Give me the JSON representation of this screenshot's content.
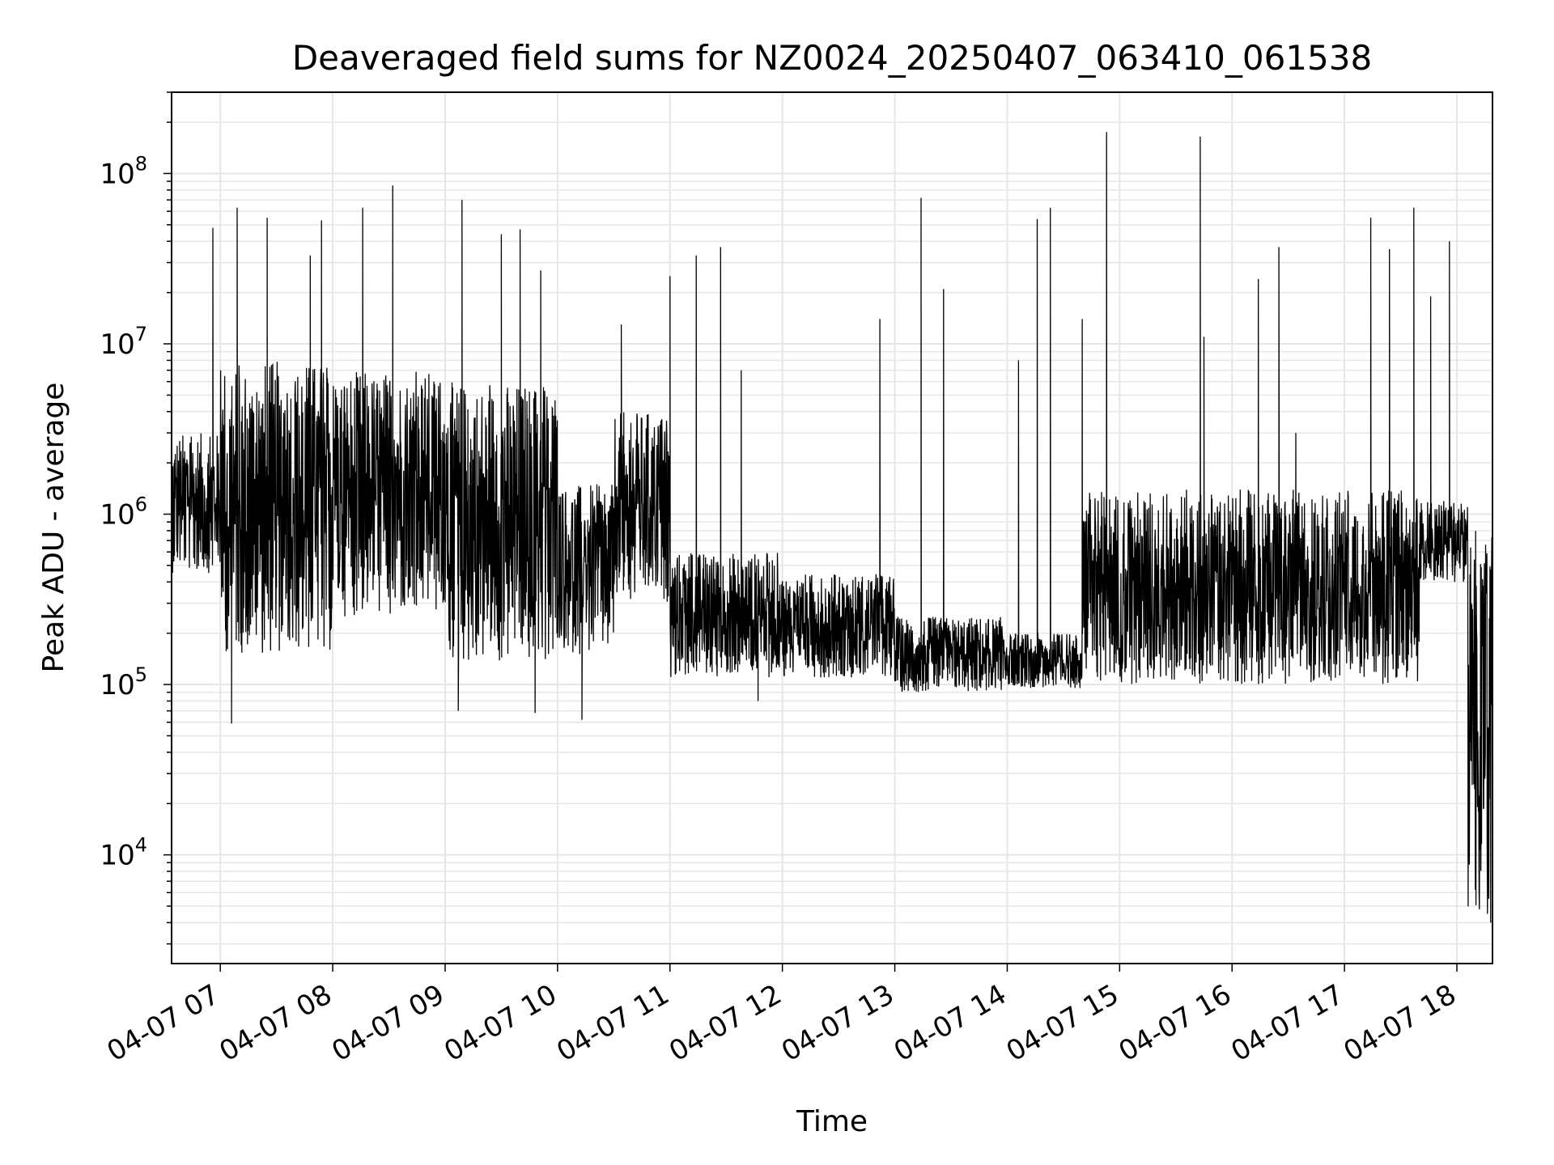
{
  "chart_data": {
    "type": "line",
    "title": "Deaveraged field sums for NZ0024_20250407_063410_061538",
    "xlabel": "Time",
    "ylabel": "Peak ADU - average",
    "yscale": "log",
    "ylim": [
      2300,
      300000000
    ],
    "xlim": [
      "2025-04-07 06:34",
      "2025-04-07 18:19"
    ],
    "grid": true,
    "line_color": "#000000",
    "grid_color": "#e6e6e6",
    "x_ticks": [
      {
        "value": "2025-04-07 07:00",
        "label": "04-07 07"
      },
      {
        "value": "2025-04-07 08:00",
        "label": "04-07 08"
      },
      {
        "value": "2025-04-07 09:00",
        "label": "04-07 09"
      },
      {
        "value": "2025-04-07 10:00",
        "label": "04-07 10"
      },
      {
        "value": "2025-04-07 11:00",
        "label": "04-07 11"
      },
      {
        "value": "2025-04-07 12:00",
        "label": "04-07 12"
      },
      {
        "value": "2025-04-07 13:00",
        "label": "04-07 13"
      },
      {
        "value": "2025-04-07 14:00",
        "label": "04-07 14"
      },
      {
        "value": "2025-04-07 15:00",
        "label": "04-07 15"
      },
      {
        "value": "2025-04-07 16:00",
        "label": "04-07 16"
      },
      {
        "value": "2025-04-07 17:00",
        "label": "04-07 17"
      },
      {
        "value": "2025-04-07 18:00",
        "label": "04-07 18"
      }
    ],
    "y_ticks": [
      {
        "value": 10000,
        "base": "10",
        "exp": "4"
      },
      {
        "value": 100000,
        "base": "10",
        "exp": "5"
      },
      {
        "value": 1000000,
        "base": "10",
        "exp": "6"
      },
      {
        "value": 10000000,
        "base": "10",
        "exp": "7"
      },
      {
        "value": 100000000,
        "base": "10",
        "exp": "8"
      }
    ],
    "series": [
      {
        "segments": [
          {
            "start": "2025-04-07 06:34",
            "end": "2025-04-07 07:00",
            "low": 450000,
            "high": 3000000
          },
          {
            "start": "2025-04-07 07:00",
            "end": "2025-04-07 08:00",
            "low": 150000,
            "high": 8000000
          },
          {
            "start": "2025-04-07 08:00",
            "end": "2025-04-07 09:00",
            "low": 250000,
            "high": 7000000
          },
          {
            "start": "2025-04-07 09:00",
            "end": "2025-04-07 10:00",
            "low": 130000,
            "high": 6000000
          },
          {
            "start": "2025-04-07 10:00",
            "end": "2025-04-07 10:30",
            "low": 150000,
            "high": 1500000
          },
          {
            "start": "2025-04-07 10:30",
            "end": "2025-04-07 11:00",
            "low": 300000,
            "high": 4000000
          },
          {
            "start": "2025-04-07 11:00",
            "end": "2025-04-07 12:00",
            "low": 110000,
            "high": 600000
          },
          {
            "start": "2025-04-07 12:00",
            "end": "2025-04-07 13:00",
            "low": 110000,
            "high": 450000
          },
          {
            "start": "2025-04-07 13:00",
            "end": "2025-04-07 14:00",
            "low": 90000,
            "high": 250000
          },
          {
            "start": "2025-04-07 14:00",
            "end": "2025-04-07 14:40",
            "low": 95000,
            "high": 200000
          },
          {
            "start": "2025-04-07 14:40",
            "end": "2025-04-07 17:40",
            "low": 100000,
            "high": 1400000
          },
          {
            "start": "2025-04-07 17:40",
            "end": "2025-04-07 18:06",
            "low": 400000,
            "high": 1200000
          },
          {
            "start": "2025-04-07 18:06",
            "end": "2025-04-07 18:19",
            "low": 4000,
            "high": 800000
          }
        ],
        "spikes": [
          {
            "time": "2025-04-07 06:56",
            "value": 48000000
          },
          {
            "time": "2025-04-07 07:09",
            "value": 63000000
          },
          {
            "time": "2025-04-07 07:25",
            "value": 55000000
          },
          {
            "time": "2025-04-07 07:48",
            "value": 33000000
          },
          {
            "time": "2025-04-07 07:54",
            "value": 53000000
          },
          {
            "time": "2025-04-07 08:16",
            "value": 63000000
          },
          {
            "time": "2025-04-07 08:32",
            "value": 85000000
          },
          {
            "time": "2025-04-07 09:09",
            "value": 70000000
          },
          {
            "time": "2025-04-07 09:30",
            "value": 44000000
          },
          {
            "time": "2025-04-07 09:40",
            "value": 47000000
          },
          {
            "time": "2025-04-07 09:51",
            "value": 27000000
          },
          {
            "time": "2025-04-07 10:34",
            "value": 13000000
          },
          {
            "time": "2025-04-07 11:00",
            "value": 25000000
          },
          {
            "time": "2025-04-07 11:14",
            "value": 33000000
          },
          {
            "time": "2025-04-07 11:27",
            "value": 37000000
          },
          {
            "time": "2025-04-07 11:38",
            "value": 7000000
          },
          {
            "time": "2025-04-07 12:52",
            "value": 14000000
          },
          {
            "time": "2025-04-07 13:14",
            "value": 72000000
          },
          {
            "time": "2025-04-07 13:26",
            "value": 21000000
          },
          {
            "time": "2025-04-07 14:06",
            "value": 8000000
          },
          {
            "time": "2025-04-07 14:16",
            "value": 54000000
          },
          {
            "time": "2025-04-07 14:23",
            "value": 63000000
          },
          {
            "time": "2025-04-07 14:40",
            "value": 14000000
          },
          {
            "time": "2025-04-07 14:53",
            "value": 175000000
          },
          {
            "time": "2025-04-07 15:43",
            "value": 165000000
          },
          {
            "time": "2025-04-07 15:45",
            "value": 11000000
          },
          {
            "time": "2025-04-07 16:14",
            "value": 24000000
          },
          {
            "time": "2025-04-07 16:25",
            "value": 37000000
          },
          {
            "time": "2025-04-07 16:34",
            "value": 3000000
          },
          {
            "time": "2025-04-07 17:14",
            "value": 55000000
          },
          {
            "time": "2025-04-07 17:24",
            "value": 36000000
          },
          {
            "time": "2025-04-07 17:37",
            "value": 63000000
          },
          {
            "time": "2025-04-07 17:46",
            "value": 19000000
          },
          {
            "time": "2025-04-07 17:56",
            "value": 40000000
          }
        ],
        "dips": [
          {
            "time": "2025-04-07 07:06",
            "value": 59000
          },
          {
            "time": "2025-04-07 09:07",
            "value": 70000
          },
          {
            "time": "2025-04-07 09:48",
            "value": 68000
          },
          {
            "time": "2025-04-07 10:13",
            "value": 62000
          },
          {
            "time": "2025-04-07 11:47",
            "value": 80000
          },
          {
            "time": "2025-04-07 18:18",
            "value": 4000
          }
        ]
      }
    ]
  }
}
